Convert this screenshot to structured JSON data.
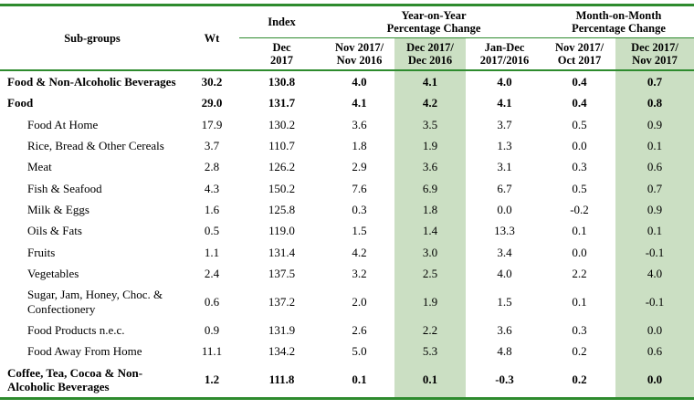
{
  "colors": {
    "line_green": "#2e8b2e",
    "highlight_green": "#cbdfc3"
  },
  "table": {
    "header": {
      "subgroups": "Sub-groups",
      "wt": "Wt",
      "index_group": "Index",
      "yoy_group": "Year-on-Year\nPercentage Change",
      "mom_group": "Month-on-Month\nPercentage Change",
      "sub_columns": [
        "Dec\n2017",
        "Nov 2017/\nNov 2016",
        "Dec 2017/\nDec 2016",
        "Jan-Dec\n2017/2016",
        "Nov 2017/\nOct 2017",
        "Dec 2017/\nNov 2017"
      ]
    },
    "rows": [
      {
        "name": "Food & Non-Alcoholic Beverages",
        "bold": true,
        "indent": false,
        "values": [
          "30.2",
          "130.8",
          "4.0",
          "4.1",
          "4.0",
          "0.4",
          "0.7"
        ]
      },
      {
        "name": "Food",
        "bold": true,
        "indent": false,
        "values": [
          "29.0",
          "131.7",
          "4.1",
          "4.2",
          "4.1",
          "0.4",
          "0.8"
        ]
      },
      {
        "name": "Food At Home",
        "bold": false,
        "indent": true,
        "values": [
          "17.9",
          "130.2",
          "3.6",
          "3.5",
          "3.7",
          "0.5",
          "0.9"
        ]
      },
      {
        "name": "Rice, Bread & Other Cereals",
        "bold": false,
        "indent": true,
        "values": [
          "3.7",
          "110.7",
          "1.8",
          "1.9",
          "1.3",
          "0.0",
          "0.1"
        ]
      },
      {
        "name": "Meat",
        "bold": false,
        "indent": true,
        "values": [
          "2.8",
          "126.2",
          "2.9",
          "3.6",
          "3.1",
          "0.3",
          "0.6"
        ]
      },
      {
        "name": "Fish & Seafood",
        "bold": false,
        "indent": true,
        "values": [
          "4.3",
          "150.2",
          "7.6",
          "6.9",
          "6.7",
          "0.5",
          "0.7"
        ]
      },
      {
        "name": "Milk & Eggs",
        "bold": false,
        "indent": true,
        "values": [
          "1.6",
          "125.8",
          "0.3",
          "1.8",
          "0.0",
          "-0.2",
          "0.9"
        ]
      },
      {
        "name": "Oils & Fats",
        "bold": false,
        "indent": true,
        "values": [
          "0.5",
          "119.0",
          "1.5",
          "1.4",
          "13.3",
          "0.1",
          "0.1"
        ]
      },
      {
        "name": "Fruits",
        "bold": false,
        "indent": true,
        "values": [
          "1.1",
          "131.4",
          "4.2",
          "3.0",
          "3.4",
          "0.0",
          "-0.1"
        ]
      },
      {
        "name": "Vegetables",
        "bold": false,
        "indent": true,
        "values": [
          "2.4",
          "137.5",
          "3.2",
          "2.5",
          "4.0",
          "2.2",
          "4.0"
        ]
      },
      {
        "name": "Sugar, Jam, Honey, Choc. & Confectionery",
        "bold": false,
        "indent": true,
        "values": [
          "0.6",
          "137.2",
          "2.0",
          "1.9",
          "1.5",
          "0.1",
          "-0.1"
        ]
      },
      {
        "name": "Food Products n.e.c.",
        "bold": false,
        "indent": true,
        "values": [
          "0.9",
          "131.9",
          "2.6",
          "2.2",
          "3.6",
          "0.3",
          "0.0"
        ]
      },
      {
        "name": "Food Away From Home",
        "bold": false,
        "indent": true,
        "values": [
          "11.1",
          "134.2",
          "5.0",
          "5.3",
          "4.8",
          "0.2",
          "0.6"
        ]
      },
      {
        "name": "Coffee, Tea, Cocoa & Non-Alcoholic Beverages",
        "bold": true,
        "indent": false,
        "values": [
          "1.2",
          "111.8",
          "0.1",
          "0.1",
          "-0.3",
          "0.2",
          "0.0"
        ]
      }
    ]
  }
}
